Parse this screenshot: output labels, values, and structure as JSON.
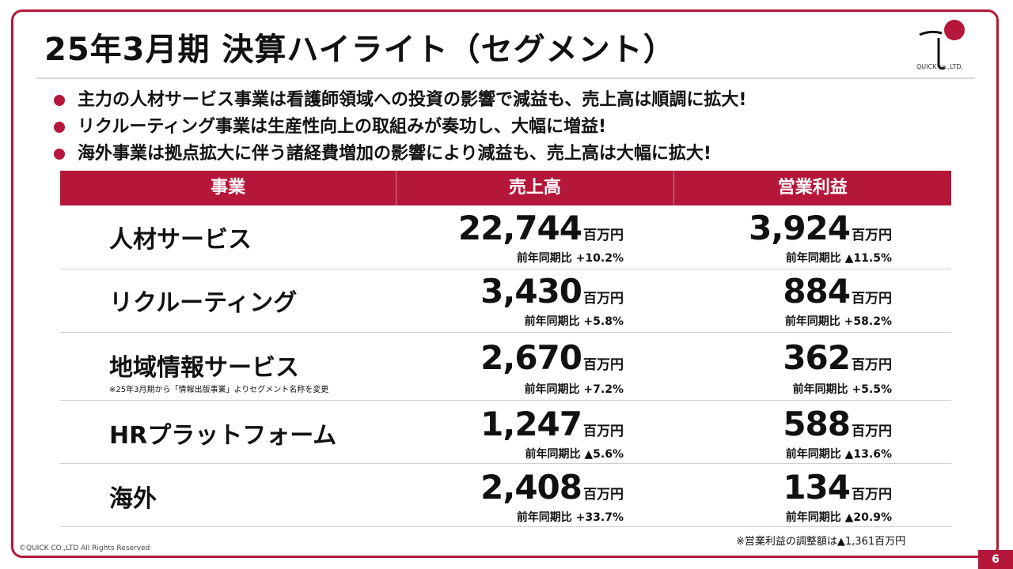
{
  "slide": {
    "title": "25年3月期 決算ハイライト（セグメント）",
    "logo_text": "QUICK co.,LTD.",
    "bullets": [
      "主力の人材サービス事業は看護師領域への投資の影響で減益も、売上高は順調に拡大!",
      "リクルーティング事業は生産性向上の取組みが奏功し、大幅に増益!",
      "海外事業は拠点拡大に伴う諸経費増加の影響により減益も、売上高は大幅に拡大!"
    ],
    "table": {
      "headers": [
        "事業",
        "売上高",
        "営業利益"
      ],
      "unit": "百万円",
      "rows": [
        {
          "segment": "人材サービス",
          "note": "",
          "sales": "22,744",
          "sales_yoy": "前年同期比 +10.2%",
          "op": "3,924",
          "op_yoy": "前年同期比 ▲11.5%"
        },
        {
          "segment": "リクルーティング",
          "note": "",
          "sales": "3,430",
          "sales_yoy": "前年同期比 +5.8%",
          "op": "884",
          "op_yoy": "前年同期比 +58.2%"
        },
        {
          "segment": "地域情報サービス",
          "note": "※25年3月期から「情報出版事業」よりセグメント名称を変更",
          "sales": "2,670",
          "sales_yoy": "前年同期比 +7.2%",
          "op": "362",
          "op_yoy": "前年同期比 +5.5%"
        },
        {
          "segment": "HRプラットフォーム",
          "note": "",
          "sales": "1,247",
          "sales_yoy": "前年同期比 ▲5.6%",
          "op": "588",
          "op_yoy": "前年同期比 ▲13.6%"
        },
        {
          "segment": "海外",
          "note": "",
          "sales": "2,408",
          "sales_yoy": "前年同期比 +33.7%",
          "op": "134",
          "op_yoy": "前年同期比 ▲20.9%"
        }
      ]
    },
    "footnote": "※営業利益の調整額は▲1,361百万円",
    "copyright": "©QUICK CO.,LTD All Rights Reserved",
    "page_number": "6"
  },
  "colors": {
    "accent": "#b5173a"
  }
}
